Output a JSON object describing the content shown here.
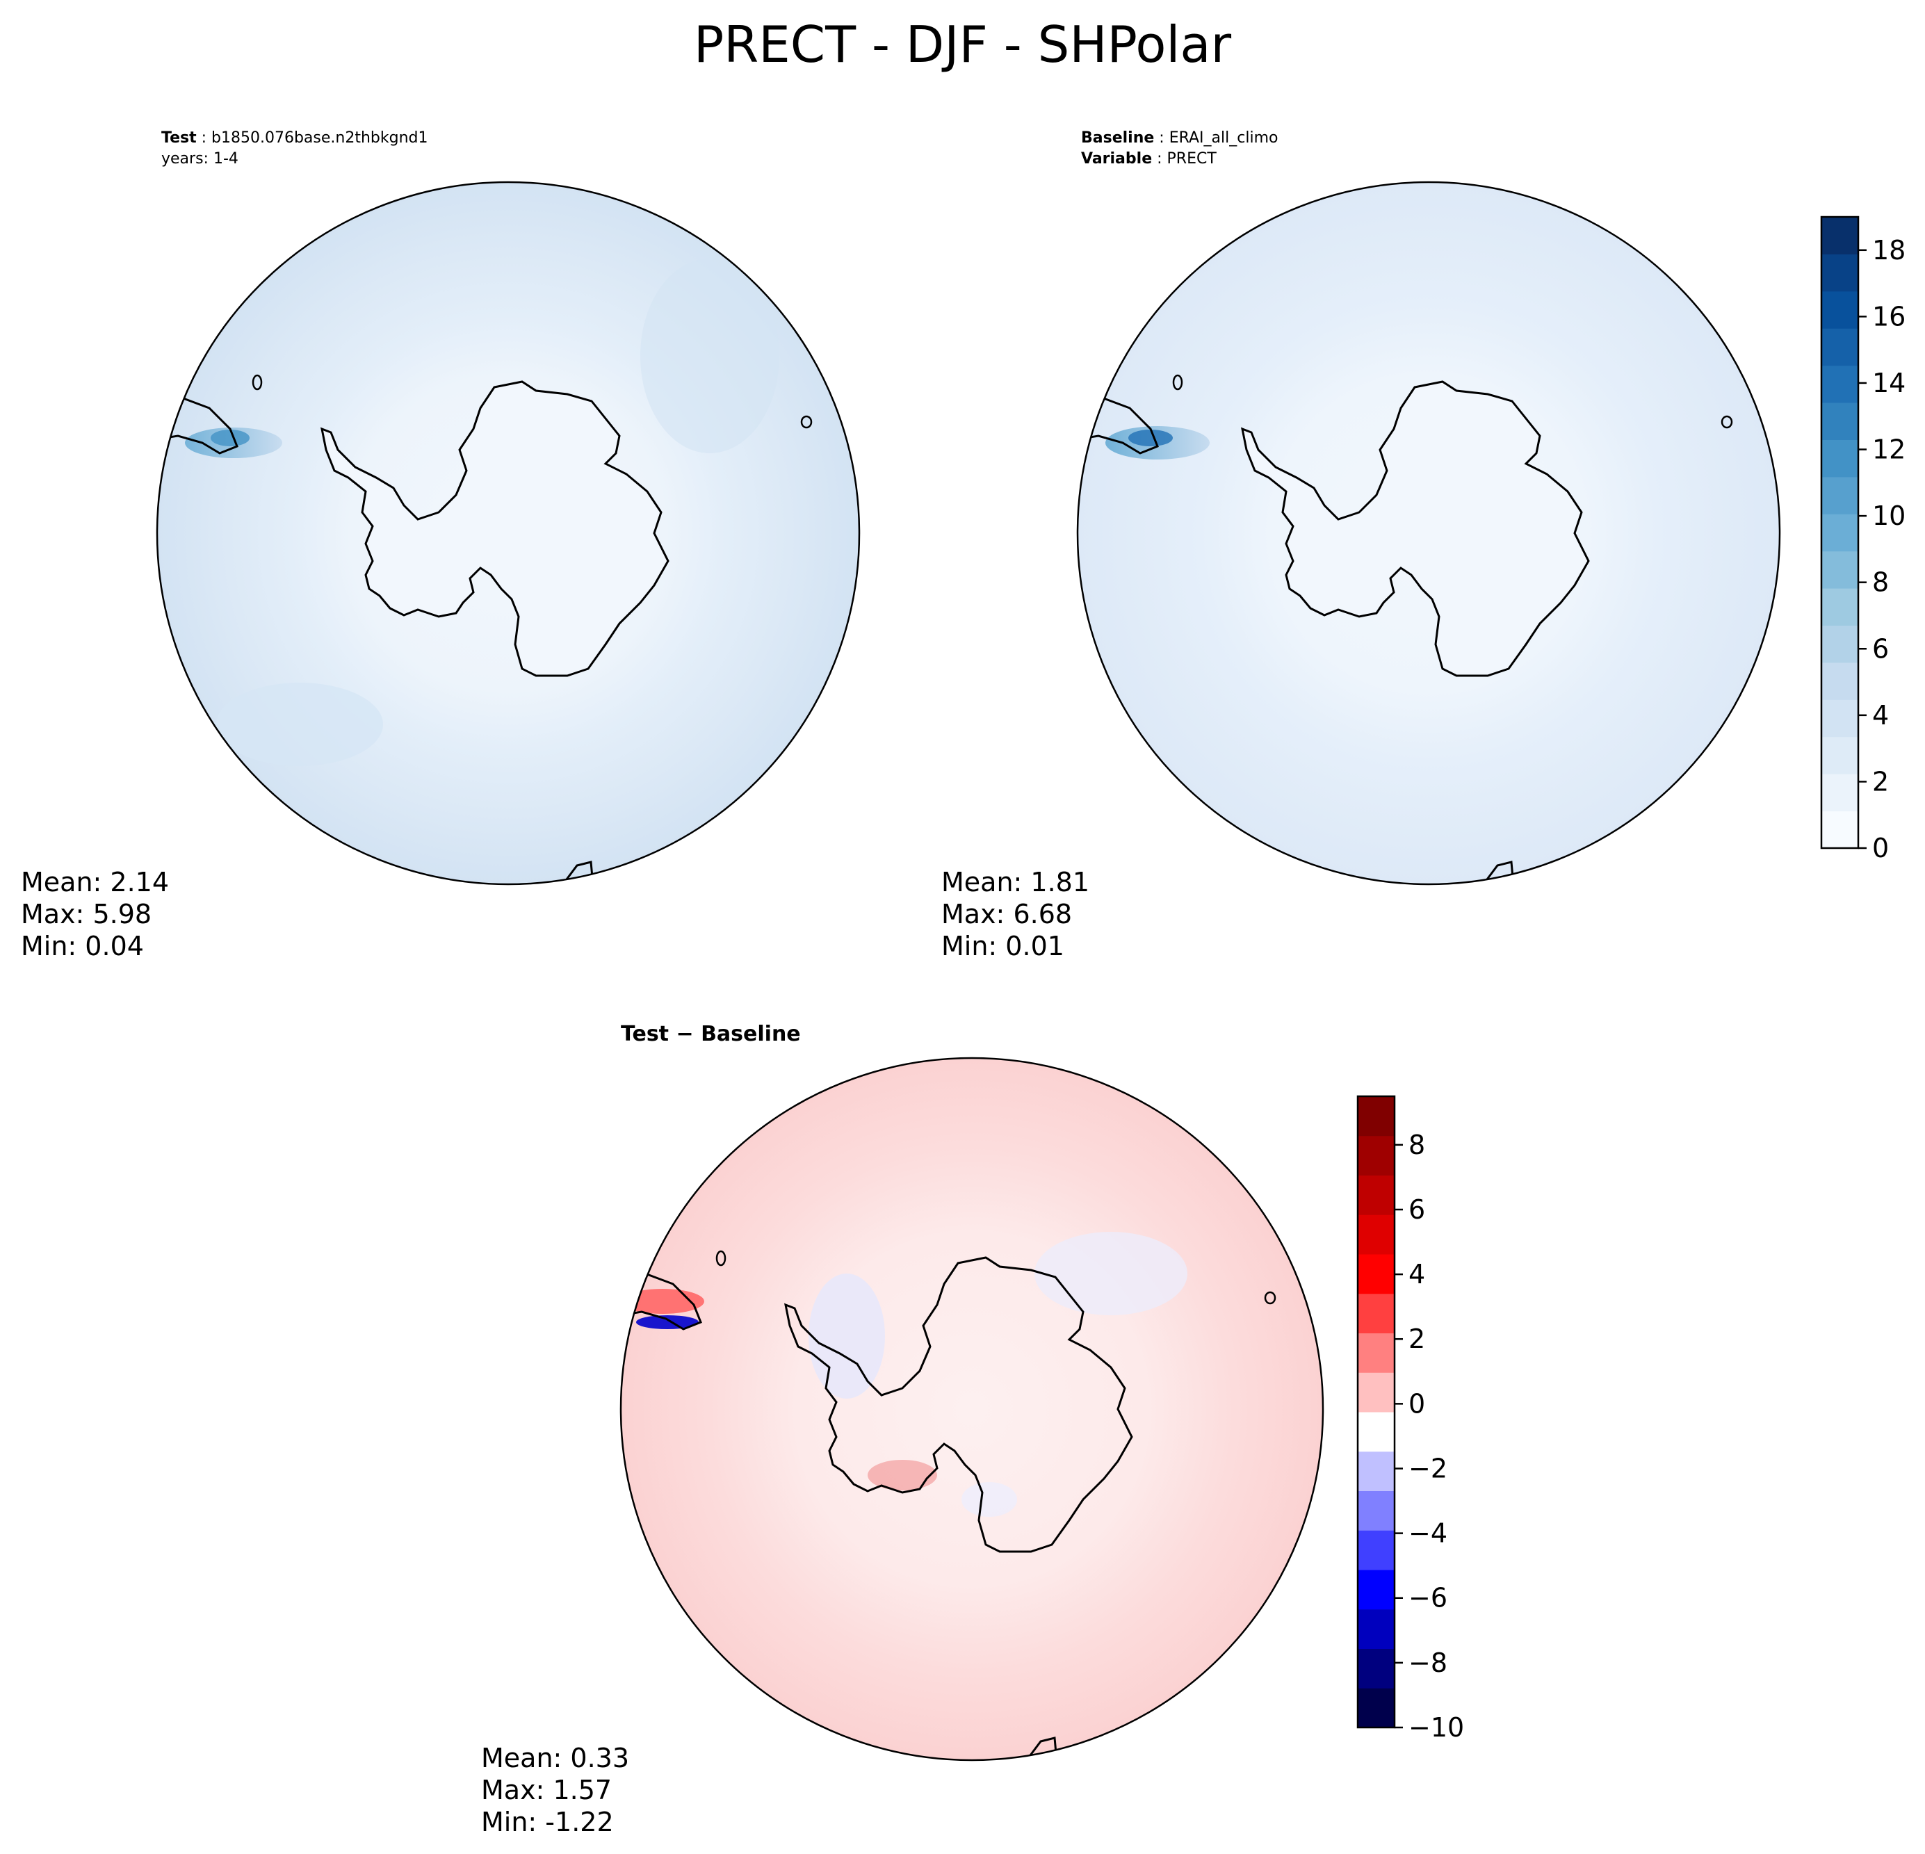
{
  "figure": {
    "title": "PRECT - DJF - SHPolar"
  },
  "panels": {
    "test": {
      "header_key": "Test",
      "header_value": "b1850.076base.n2thbkgnd1",
      "header_line2": "years: 1-4",
      "stats": {
        "mean": "Mean:  2.14",
        "max": "Max:  5.98",
        "min": "Min:  0.04"
      }
    },
    "baseline": {
      "header_key": "Baseline",
      "header_value": "ERAI_all_climo",
      "header_key2": "Variable",
      "header_value2": "PRECT",
      "stats": {
        "mean": "Mean:  1.81",
        "max": "Max:  6.68",
        "min": "Min:  0.01"
      }
    },
    "diff": {
      "title_a": "Test",
      "title_sep": " − ",
      "title_b": "Baseline",
      "stats": {
        "mean": "Mean:  0.33",
        "max": "Max:  1.57",
        "min": "Min: -1.22"
      }
    }
  },
  "chart_data": [
    {
      "type": "heatmap",
      "panel": "test",
      "projection": "south-polar-stereographic",
      "region": "SHPolar",
      "colormap": "Blues",
      "colorbar": {
        "range": [
          0,
          19
        ],
        "levels": 19,
        "ticks": [
          0,
          2,
          4,
          6,
          8,
          10,
          12,
          14,
          16,
          18
        ]
      },
      "statistics": {
        "mean": 2.14,
        "max": 5.98,
        "min": 0.04
      }
    },
    {
      "type": "heatmap",
      "panel": "baseline",
      "projection": "south-polar-stereographic",
      "region": "SHPolar",
      "colormap": "Blues",
      "colorbar": {
        "range": [
          0,
          19
        ],
        "levels": 19,
        "ticks": [
          0,
          2,
          4,
          6,
          8,
          10,
          12,
          14,
          16,
          18
        ]
      },
      "statistics": {
        "mean": 1.81,
        "max": 6.68,
        "min": 0.01
      }
    },
    {
      "type": "heatmap",
      "panel": "diff",
      "projection": "south-polar-stereographic",
      "region": "SHPolar",
      "colormap": "seismic",
      "colorbar": {
        "range": [
          -10,
          9.5
        ],
        "ticks": [
          8,
          6,
          4,
          2,
          0,
          -2,
          -4,
          -6,
          -8,
          -10
        ]
      },
      "statistics": {
        "mean": 0.33,
        "max": 1.57,
        "min": -1.22
      }
    }
  ],
  "colors": {
    "blues": [
      "#f7fbff",
      "#ebf3fb",
      "#deebf7",
      "#d2e3f3",
      "#c6dbef",
      "#b2d2e8",
      "#9ecae1",
      "#84bcdb",
      "#6baed6",
      "#57a0ce",
      "#4292c6",
      "#3182bd",
      "#2171b5",
      "#1561a9",
      "#08519c",
      "#084287",
      "#08306b"
    ],
    "seismic": [
      "#00004c",
      "#00007f",
      "#0000be",
      "#0000ff",
      "#4040ff",
      "#8080ff",
      "#c0c0ff",
      "#ffffff",
      "#ffc0c0",
      "#ff8080",
      "#ff4040",
      "#ff0000",
      "#df0000",
      "#bf0000",
      "#9f0000",
      "#800000"
    ]
  }
}
